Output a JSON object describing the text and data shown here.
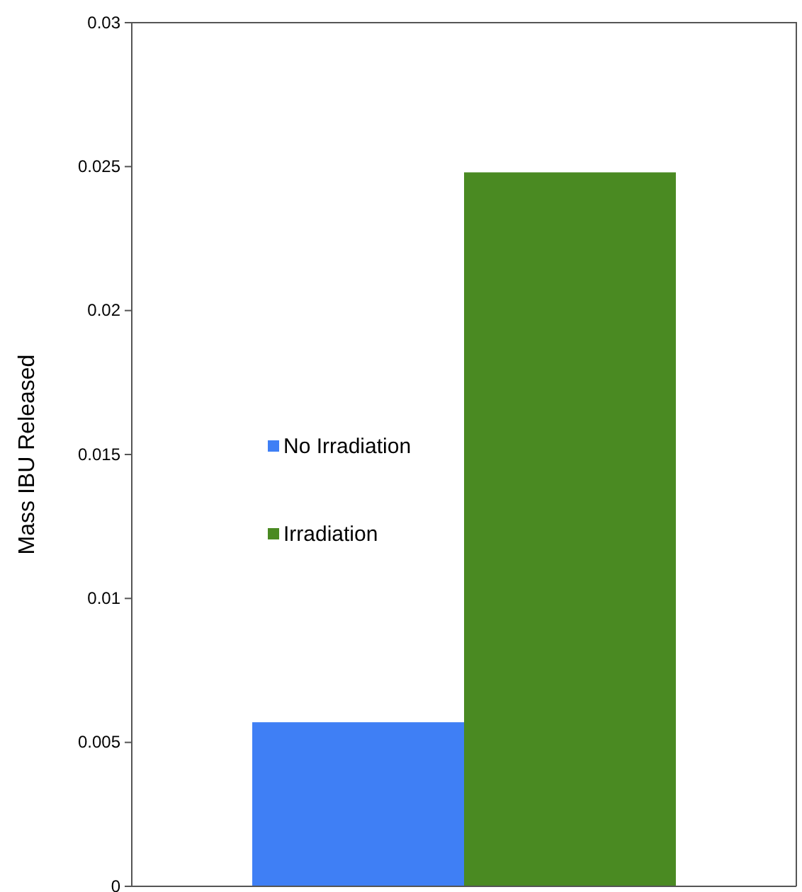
{
  "chart_data": {
    "type": "bar",
    "ylabel": "Mass IBU Released",
    "categories": [
      null
    ],
    "series": [
      {
        "name": "No Irradiation",
        "color": "#3f7ff5",
        "values": [
          0.0057
        ]
      },
      {
        "name": "Irradiation",
        "color": "#4a8a22",
        "values": [
          0.0248
        ]
      }
    ],
    "ylim": [
      0,
      0.03
    ],
    "yticks": [
      0,
      0.005,
      0.01,
      0.015,
      0.02,
      0.025,
      0.03
    ],
    "grid": false,
    "legend": "left"
  }
}
